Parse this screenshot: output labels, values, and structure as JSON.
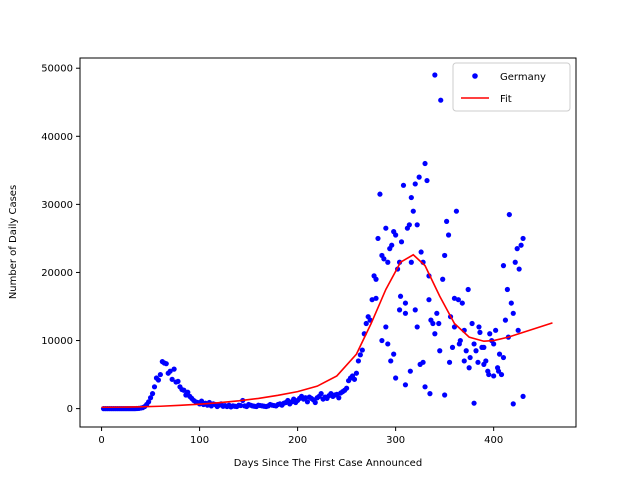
{
  "chart_data": {
    "type": "scatter",
    "title": "",
    "xlabel": "Days Since The First Case Announced",
    "ylabel": "Number of Daily Cases",
    "xlim": [
      -22,
      484
    ],
    "ylim": [
      -2700,
      51500
    ],
    "xticks": [
      0,
      100,
      200,
      300,
      400
    ],
    "yticks": [
      0,
      10000,
      20000,
      30000,
      40000,
      50000
    ],
    "grid": false,
    "legend_position": "top-right",
    "colors": {
      "scatter": "#0000ff",
      "fit": "#ff0000"
    },
    "series": [
      {
        "name": "Germany",
        "kind": "scatter",
        "points": [
          [
            2,
            0
          ],
          [
            4,
            0
          ],
          [
            6,
            0
          ],
          [
            8,
            0
          ],
          [
            10,
            0
          ],
          [
            12,
            0
          ],
          [
            14,
            0
          ],
          [
            16,
            0
          ],
          [
            18,
            0
          ],
          [
            20,
            0
          ],
          [
            22,
            0
          ],
          [
            24,
            0
          ],
          [
            26,
            0
          ],
          [
            28,
            0
          ],
          [
            30,
            0
          ],
          [
            32,
            0
          ],
          [
            34,
            0
          ],
          [
            36,
            20
          ],
          [
            38,
            40
          ],
          [
            40,
            80
          ],
          [
            42,
            150
          ],
          [
            44,
            300
          ],
          [
            46,
            600
          ],
          [
            48,
            1000
          ],
          [
            50,
            1600
          ],
          [
            52,
            2200
          ],
          [
            54,
            3200
          ],
          [
            56,
            4500
          ],
          [
            58,
            4200
          ],
          [
            60,
            5000
          ],
          [
            62,
            6900
          ],
          [
            64,
            6700
          ],
          [
            66,
            6600
          ],
          [
            68,
            5200
          ],
          [
            70,
            5500
          ],
          [
            72,
            4300
          ],
          [
            74,
            5800
          ],
          [
            76,
            3900
          ],
          [
            78,
            4000
          ],
          [
            80,
            3200
          ],
          [
            82,
            2800
          ],
          [
            84,
            2700
          ],
          [
            86,
            2000
          ],
          [
            88,
            2400
          ],
          [
            90,
            1800
          ],
          [
            92,
            1500
          ],
          [
            94,
            1200
          ],
          [
            96,
            1000
          ],
          [
            98,
            900
          ],
          [
            100,
            700
          ],
          [
            102,
            1100
          ],
          [
            104,
            600
          ],
          [
            106,
            800
          ],
          [
            108,
            500
          ],
          [
            110,
            900
          ],
          [
            112,
            400
          ],
          [
            114,
            700
          ],
          [
            116,
            600
          ],
          [
            118,
            300
          ],
          [
            120,
            500
          ],
          [
            122,
            700
          ],
          [
            124,
            350
          ],
          [
            126,
            450
          ],
          [
            128,
            300
          ],
          [
            130,
            500
          ],
          [
            132,
            250
          ],
          [
            134,
            400
          ],
          [
            136,
            350
          ],
          [
            138,
            300
          ],
          [
            140,
            500
          ],
          [
            142,
            450
          ],
          [
            144,
            1200
          ],
          [
            146,
            400
          ],
          [
            148,
            300
          ],
          [
            150,
            600
          ],
          [
            152,
            500
          ],
          [
            154,
            400
          ],
          [
            156,
            350
          ],
          [
            158,
            300
          ],
          [
            160,
            500
          ],
          [
            162,
            450
          ],
          [
            164,
            400
          ],
          [
            166,
            350
          ],
          [
            168,
            300
          ],
          [
            170,
            400
          ],
          [
            172,
            600
          ],
          [
            174,
            500
          ],
          [
            176,
            450
          ],
          [
            178,
            400
          ],
          [
            180,
            600
          ],
          [
            182,
            700
          ],
          [
            184,
            500
          ],
          [
            186,
            800
          ],
          [
            188,
            900
          ],
          [
            190,
            1200
          ],
          [
            192,
            700
          ],
          [
            194,
            1000
          ],
          [
            196,
            1400
          ],
          [
            198,
            900
          ],
          [
            200,
            1200
          ],
          [
            202,
            1500
          ],
          [
            204,
            1800
          ],
          [
            206,
            1400
          ],
          [
            208,
            1600
          ],
          [
            210,
            1000
          ],
          [
            212,
            1700
          ],
          [
            214,
            1500
          ],
          [
            216,
            1300
          ],
          [
            218,
            900
          ],
          [
            220,
            1600
          ],
          [
            222,
            1800
          ],
          [
            224,
            2200
          ],
          [
            226,
            1400
          ],
          [
            228,
            1700
          ],
          [
            230,
            1500
          ],
          [
            232,
            1900
          ],
          [
            234,
            2200
          ],
          [
            236,
            1800
          ],
          [
            238,
            2000
          ],
          [
            240,
            2100
          ],
          [
            242,
            1600
          ],
          [
            244,
            2300
          ],
          [
            246,
            2500
          ],
          [
            248,
            2700
          ],
          [
            250,
            3000
          ],
          [
            252,
            4100
          ],
          [
            254,
            4500
          ],
          [
            256,
            4800
          ],
          [
            258,
            4300
          ],
          [
            260,
            5200
          ],
          [
            262,
            7000
          ],
          [
            264,
            7900
          ],
          [
            266,
            8600
          ],
          [
            268,
            11000
          ],
          [
            270,
            12500
          ],
          [
            272,
            13500
          ],
          [
            274,
            13000
          ],
          [
            276,
            16000
          ],
          [
            278,
            19500
          ],
          [
            280,
            19000
          ],
          [
            282,
            25000
          ],
          [
            284,
            31500
          ],
          [
            286,
            22500
          ],
          [
            288,
            22000
          ],
          [
            290,
            26500
          ],
          [
            292,
            21500
          ],
          [
            294,
            23500
          ],
          [
            296,
            24000
          ],
          [
            298,
            26000
          ],
          [
            300,
            25500
          ],
          [
            302,
            20500
          ],
          [
            304,
            21500
          ],
          [
            306,
            24500
          ],
          [
            308,
            32800
          ],
          [
            310,
            14000
          ],
          [
            312,
            26500
          ],
          [
            314,
            27000
          ],
          [
            316,
            31000
          ],
          [
            318,
            29000
          ],
          [
            320,
            33000
          ],
          [
            322,
            27000
          ],
          [
            324,
            34000
          ],
          [
            326,
            23000
          ],
          [
            328,
            21500
          ],
          [
            330,
            36000
          ],
          [
            332,
            33500
          ],
          [
            334,
            19500
          ],
          [
            336,
            13000
          ],
          [
            338,
            12500
          ],
          [
            340,
            49000
          ],
          [
            342,
            14000
          ],
          [
            344,
            12500
          ],
          [
            346,
            45300
          ],
          [
            348,
            19000
          ],
          [
            350,
            22500
          ],
          [
            352,
            27500
          ],
          [
            354,
            25500
          ],
          [
            356,
            13500
          ],
          [
            358,
            9000
          ],
          [
            360,
            12000
          ],
          [
            362,
            29000
          ],
          [
            364,
            16000
          ],
          [
            366,
            10000
          ],
          [
            368,
            15500
          ],
          [
            370,
            11500
          ],
          [
            372,
            8500
          ],
          [
            374,
            17500
          ],
          [
            376,
            7500
          ],
          [
            378,
            12500
          ],
          [
            380,
            9500
          ],
          [
            382,
            8500
          ],
          [
            384,
            6800
          ],
          [
            386,
            11200
          ],
          [
            388,
            9000
          ],
          [
            390,
            6500
          ],
          [
            392,
            7000
          ],
          [
            394,
            5500
          ],
          [
            396,
            11000
          ],
          [
            398,
            10000
          ],
          [
            400,
            9500
          ],
          [
            402,
            11500
          ],
          [
            404,
            6000
          ],
          [
            406,
            8000
          ],
          [
            408,
            5000
          ],
          [
            410,
            21000
          ],
          [
            412,
            13000
          ],
          [
            414,
            17500
          ],
          [
            416,
            28500
          ],
          [
            418,
            15500
          ],
          [
            420,
            14000
          ],
          [
            422,
            21500
          ],
          [
            424,
            23500
          ],
          [
            426,
            20500
          ],
          [
            428,
            24000
          ],
          [
            430,
            25000
          ],
          [
            290,
            12000
          ],
          [
            295,
            7000
          ],
          [
            300,
            4500
          ],
          [
            305,
            16500
          ],
          [
            310,
            3500
          ],
          [
            315,
            5500
          ],
          [
            320,
            14500
          ],
          [
            325,
            6500
          ],
          [
            330,
            3200
          ],
          [
            335,
            2200
          ],
          [
            340,
            11000
          ],
          [
            345,
            8500
          ],
          [
            350,
            2000
          ],
          [
            355,
            6800
          ],
          [
            360,
            16200
          ],
          [
            365,
            9500
          ],
          [
            370,
            7000
          ],
          [
            375,
            6000
          ],
          [
            380,
            800
          ],
          [
            385,
            12000
          ],
          [
            390,
            9000
          ],
          [
            395,
            5000
          ],
          [
            400,
            4800
          ],
          [
            405,
            5500
          ],
          [
            410,
            7500
          ],
          [
            415,
            10500
          ],
          [
            420,
            700
          ],
          [
            425,
            11500
          ],
          [
            430,
            1800
          ],
          [
            280,
            16200
          ],
          [
            286,
            10000
          ],
          [
            292,
            9500
          ],
          [
            298,
            8000
          ],
          [
            304,
            14500
          ],
          [
            310,
            15500
          ],
          [
            316,
            21500
          ],
          [
            322,
            12000
          ],
          [
            328,
            6800
          ],
          [
            334,
            16000
          ]
        ]
      },
      {
        "name": "Fit",
        "kind": "line",
        "points": [
          [
            0,
            200
          ],
          [
            20,
            220
          ],
          [
            40,
            260
          ],
          [
            60,
            350
          ],
          [
            80,
            480
          ],
          [
            100,
            650
          ],
          [
            120,
            870
          ],
          [
            140,
            1150
          ],
          [
            160,
            1500
          ],
          [
            180,
            1950
          ],
          [
            200,
            2500
          ],
          [
            220,
            3300
          ],
          [
            240,
            4800
          ],
          [
            260,
            8000
          ],
          [
            275,
            12500
          ],
          [
            290,
            17500
          ],
          [
            305,
            21500
          ],
          [
            318,
            22600
          ],
          [
            330,
            21000
          ],
          [
            345,
            16500
          ],
          [
            360,
            12500
          ],
          [
            375,
            10500
          ],
          [
            390,
            9900
          ],
          [
            400,
            10000
          ],
          [
            415,
            10500
          ],
          [
            430,
            11200
          ],
          [
            445,
            11900
          ],
          [
            460,
            12600
          ]
        ]
      }
    ]
  }
}
